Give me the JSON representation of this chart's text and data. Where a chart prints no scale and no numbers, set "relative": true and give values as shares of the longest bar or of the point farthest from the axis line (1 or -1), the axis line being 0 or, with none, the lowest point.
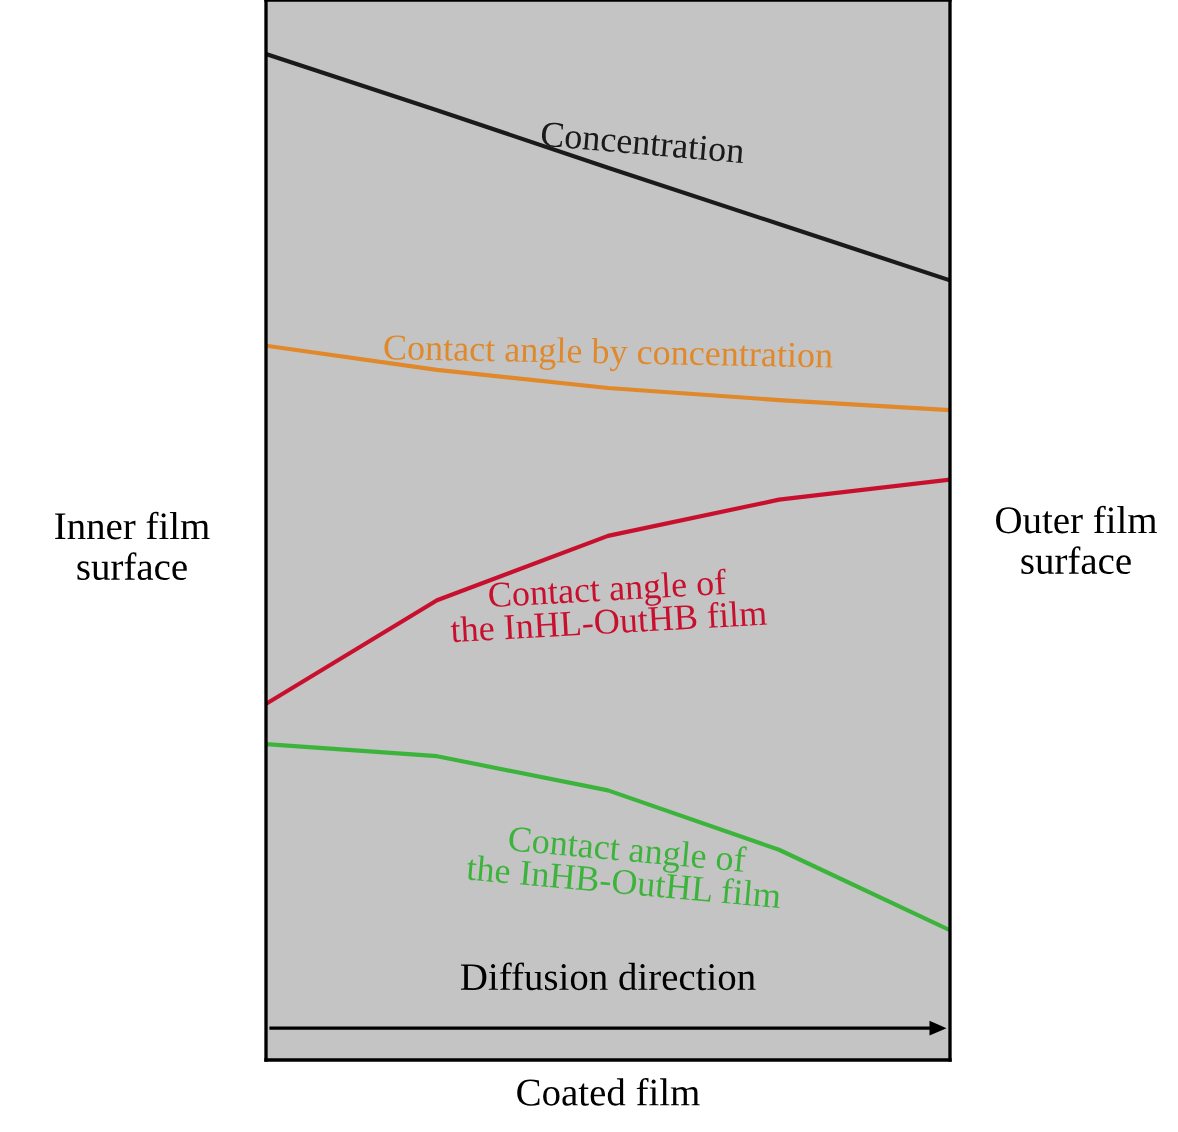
{
  "chart_data": {
    "type": "line",
    "relative": true,
    "xlabel": "Coated film",
    "categories": [
      null,
      null,
      null,
      null,
      null
    ],
    "series": [
      {
        "name": "Concentration",
        "color": "#1a1a1a",
        "values": [
          1,
          0.944,
          0.887,
          0.831,
          0.775
        ]
      },
      {
        "name": "Contact angle by concentration",
        "color": "#e0882a",
        "values": [
          0.71,
          0.686,
          0.668,
          0.656,
          0.646
        ]
      },
      {
        "name": "Contact angle of\nthe InHL-OutHB film",
        "color": "#c8102e",
        "values": [
          0.354,
          0.457,
          0.521,
          0.557,
          0.577
        ]
      },
      {
        "name": "Contact angle of\nthe InHB-OutHL film",
        "color": "#3cb43c",
        "values": [
          0.314,
          0.302,
          0.268,
          0.209,
          0.129
        ]
      }
    ],
    "annotations": [
      "Inner film\nsurface",
      "Outer film\nsurface",
      "Diffusion direction"
    ],
    "legend": false,
    "marker": "none",
    "line_style": "solid",
    "tick_labels": false
  }
}
